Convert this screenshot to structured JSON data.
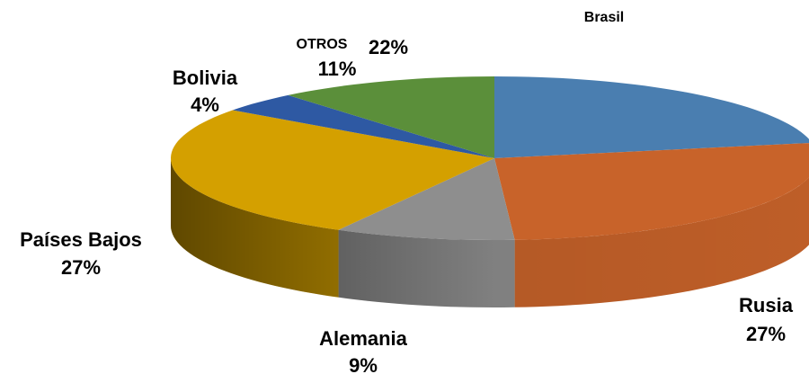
{
  "chart_data": {
    "type": "pie3d",
    "categories": [
      "Brasil",
      "Rusia",
      "Alemania",
      "Países Bajos",
      "Bolivia",
      "OTROS"
    ],
    "values": [
      22,
      27,
      9,
      27,
      4,
      11
    ],
    "value_labels": [
      "22%",
      "27%",
      "9%",
      "27%",
      "4%",
      "11%"
    ],
    "colors": [
      "#4a7eb0",
      "#c8632a",
      "#8e8e8e",
      "#d4a000",
      "#2e59a3",
      "#5b8f3a"
    ]
  }
}
